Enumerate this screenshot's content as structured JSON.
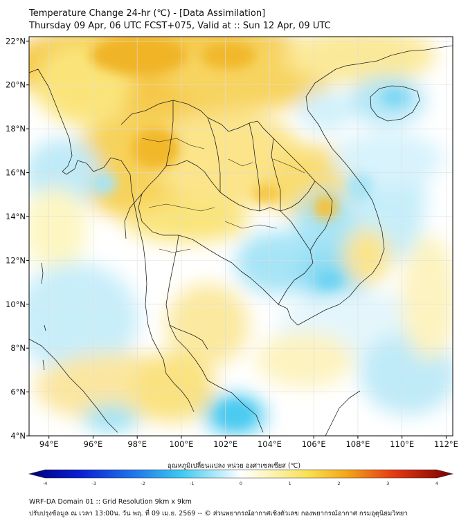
{
  "header": {
    "title_line1": "Temperature Change 24-hr (℃) - [Data Assimilation]",
    "title_line2": "Thursday 09 Apr, 06 UTC FCST+075, Valid at :: Sun 12 Apr, 09 UTC"
  },
  "map": {
    "lat_labels": [
      "22°N",
      "20°N",
      "18°N",
      "16°N",
      "14°N",
      "12°N",
      "10°N",
      "8°N",
      "6°N",
      "4°N"
    ],
    "lon_labels": [
      "94°E",
      "96°E",
      "98°E",
      "100°E",
      "102°E",
      "104°E",
      "106°E",
      "108°E",
      "110°E",
      "112°E"
    ],
    "lat_range": [
      4,
      22.2
    ],
    "lon_range": [
      93.1,
      112.3
    ],
    "field": "24-hr temperature change",
    "colors": {
      "strong_warm": "#f2b82a",
      "warm": "#fae47a",
      "mild_warm": "#fdf6c2",
      "neutral": "#ffffff",
      "mild_cool": "#d9f2fb",
      "cool": "#9ee3f5",
      "strong_cool": "#5fd0f2",
      "coastline": "#222222",
      "grid": "#dddddd"
    }
  },
  "colorbar": {
    "title": "อุณหภูมิเปลี่ยนแปลง หน่วย องศาเซลเซียส (℃)",
    "ticks": [
      "-4",
      "-3",
      "-2",
      "-1",
      "0",
      "1",
      "2",
      "3",
      "4"
    ],
    "range": [
      -4,
      4
    ],
    "low_color": "#00007a",
    "high_color": "#7a0000"
  },
  "footer": {
    "line1": "WRF-DA Domain 01 :: Grid Resolution 9km x 9km",
    "line2": "ปรับปรุงข้อมูล ณ เวลา 13:00น. วัน พฤ. ที่ 09 เม.ย. 2569 -- © ส่วนพยากรณ์อากาศเชิงตัวเลข กองพยากรณ์อากาศ กรมอุตุนิยมวิทยา"
  }
}
